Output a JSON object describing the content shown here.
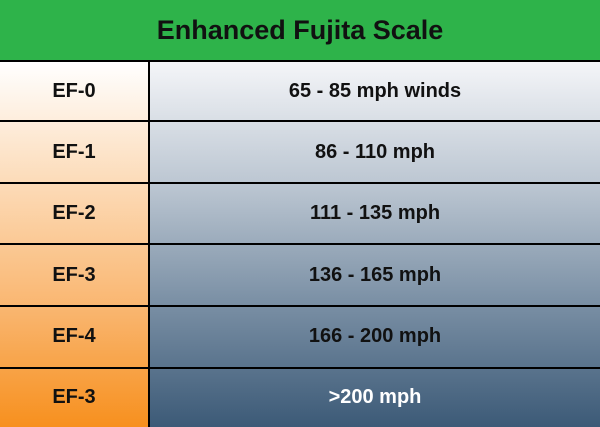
{
  "header": {
    "title": "Enhanced Fujita Scale"
  },
  "table": {
    "rows": [
      [
        "EF-0",
        "65 - 85 mph winds"
      ],
      [
        "EF-1",
        "86 - 110 mph"
      ],
      [
        "EF-2",
        "111 - 135 mph"
      ],
      [
        "EF-3",
        "136 - 165 mph"
      ],
      [
        "EF-4",
        "166 - 200 mph"
      ],
      [
        "EF-3",
        ">200 mph"
      ]
    ]
  }
}
